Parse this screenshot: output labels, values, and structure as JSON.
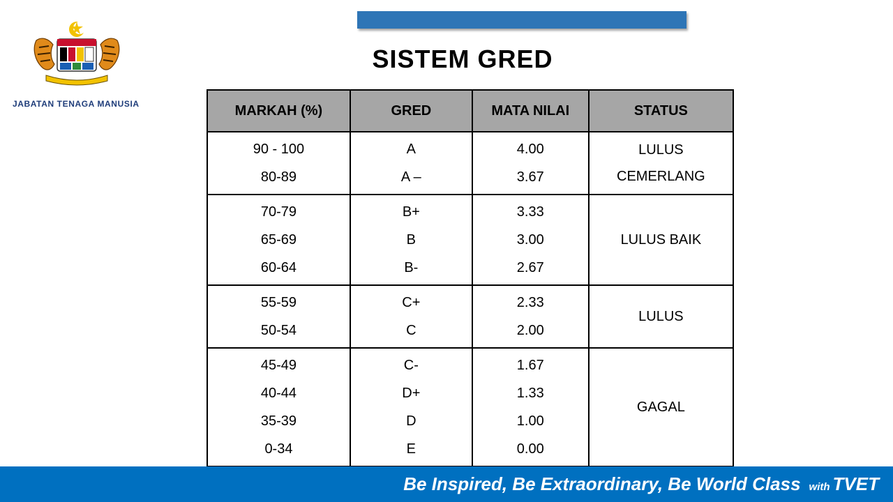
{
  "header": {
    "org_name": "JABATAN TENAGA MANUSIA",
    "title": "SISTEM GRED"
  },
  "table": {
    "headers": [
      "MARKAH (%)",
      "GRED",
      "MATA NILAI",
      "STATUS"
    ],
    "groups": [
      {
        "status": [
          "LULUS",
          "CEMERLANG"
        ],
        "rows": [
          {
            "markah": "90 - 100",
            "gred": "A",
            "mata": "4.00"
          },
          {
            "markah": "80-89",
            "gred": "A –",
            "mata": "3.67"
          }
        ]
      },
      {
        "status": [
          "LULUS BAIK"
        ],
        "rows": [
          {
            "markah": "70-79",
            "gred": "B+",
            "mata": "3.33"
          },
          {
            "markah": "65-69",
            "gred": "B",
            "mata": "3.00"
          },
          {
            "markah": "60-64",
            "gred": "B-",
            "mata": "2.67"
          }
        ]
      },
      {
        "status": [
          "LULUS"
        ],
        "rows": [
          {
            "markah": "55-59",
            "gred": "C+",
            "mata": "2.33"
          },
          {
            "markah": "50-54",
            "gred": "C",
            "mata": "2.00"
          }
        ]
      },
      {
        "status": [
          "GAGAL"
        ],
        "rows": [
          {
            "markah": "45-49",
            "gred": "C-",
            "mata": "1.67"
          },
          {
            "markah": "40-44",
            "gred": "D+",
            "mata": "1.33"
          },
          {
            "markah": "35-39",
            "gred": "D",
            "mata": "1.00"
          },
          {
            "markah": "0-34",
            "gred": "E",
            "mata": "0.00"
          }
        ]
      }
    ]
  },
  "footer": {
    "slogan": "Be Inspired, Be Extraordinary, Be World Class",
    "with": "with",
    "brand": "TVET"
  },
  "colors": {
    "accent_bar": "#2e75b6",
    "footer_bar": "#0070c0",
    "header_cell": "#a6a6a6",
    "org_text": "#1f3d7a"
  },
  "icons": {
    "logo": "malaysia-coat-of-arms-icon"
  }
}
